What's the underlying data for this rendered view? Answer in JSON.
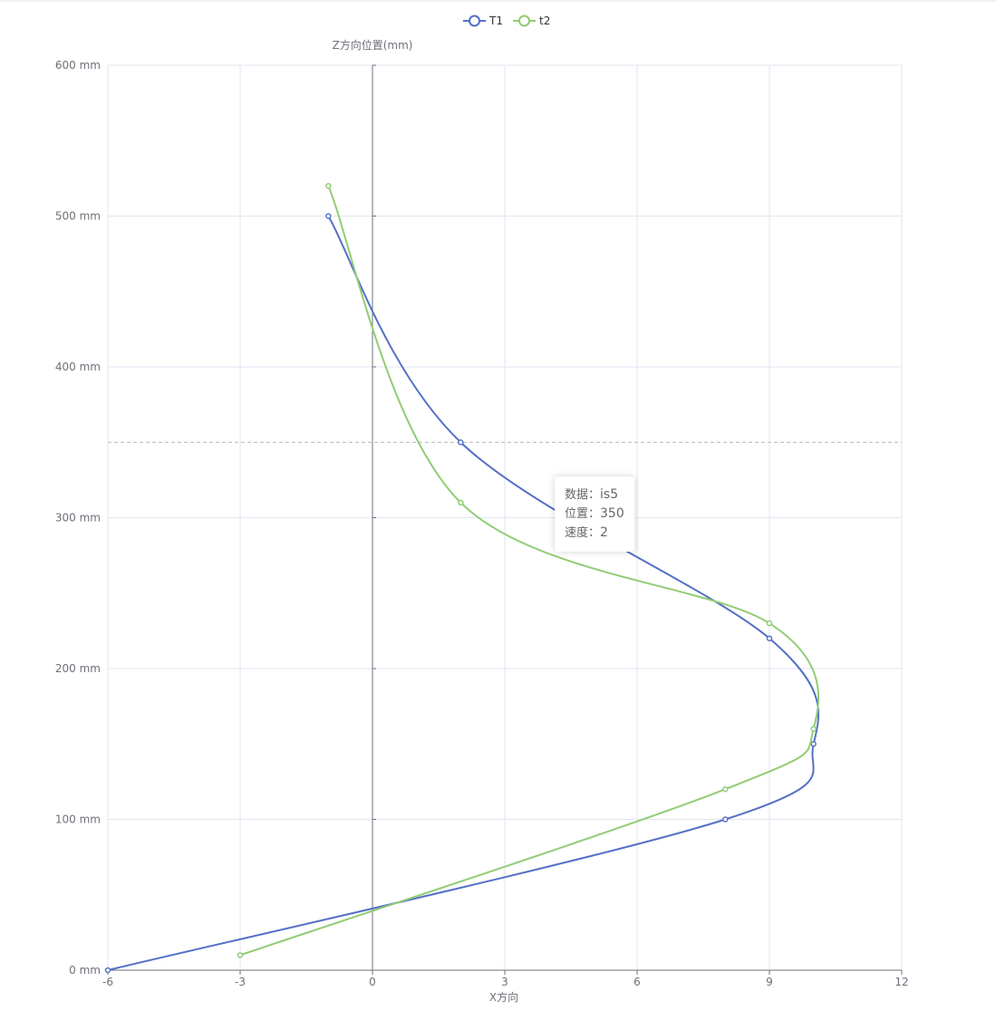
{
  "chart_data": {
    "type": "line",
    "orientation": "vertical",
    "xlabel": "X方向",
    "ylabel": "Z方向位置(mm)",
    "xlim": [
      -6,
      12
    ],
    "ylim": [
      0,
      600
    ],
    "x_ticks": [
      "-6",
      "-3",
      "0",
      "3",
      "6",
      "9",
      "12"
    ],
    "y_ticks": [
      "0 mm",
      "100 mm",
      "200 mm",
      "300 mm",
      "400 mm",
      "500 mm",
      "600 mm"
    ],
    "legend_position": "top-center",
    "series": [
      {
        "name": "T1",
        "color": "#5470c6",
        "points": [
          {
            "x": -6,
            "z": 0
          },
          {
            "x": 8,
            "z": 100
          },
          {
            "x": 10,
            "z": 150
          },
          {
            "x": 9,
            "z": 220
          },
          {
            "x": 2,
            "z": 350
          },
          {
            "x": -1,
            "z": 500
          }
        ]
      },
      {
        "name": "t2",
        "color": "#91cc75",
        "points": [
          {
            "x": -3,
            "z": 10
          },
          {
            "x": 8,
            "z": 120
          },
          {
            "x": 10,
            "z": 160
          },
          {
            "x": 9,
            "z": 230
          },
          {
            "x": 2,
            "z": 310
          },
          {
            "x": -1,
            "z": 520
          }
        ]
      }
    ],
    "axis_pointer_value": 350
  },
  "tooltip": {
    "label_data": "数据：",
    "value_data": "is5",
    "label_position": "位置：",
    "value_position": "350",
    "label_speed": "速度：",
    "value_speed": "2"
  }
}
